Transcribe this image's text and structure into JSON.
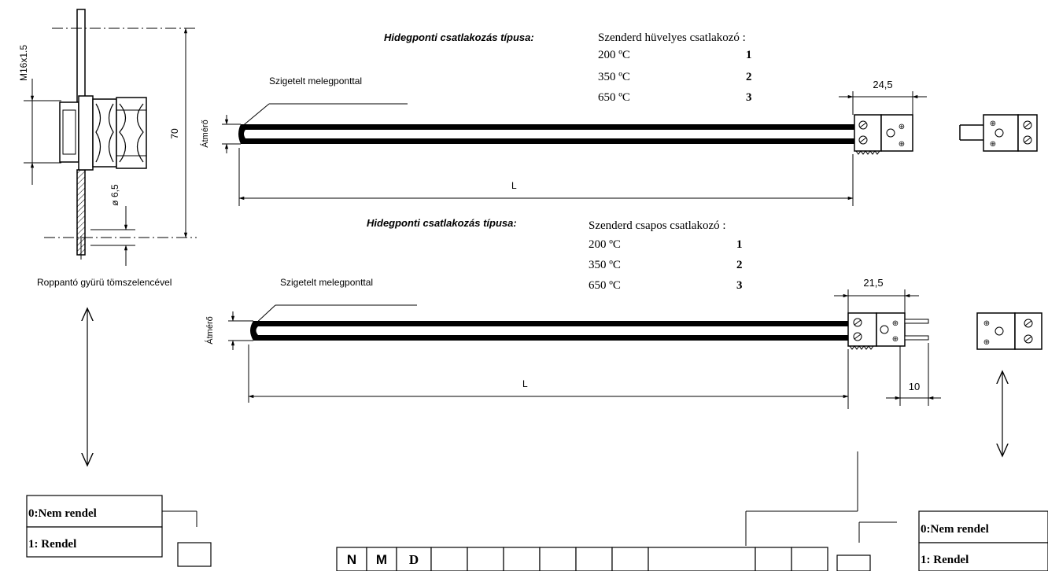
{
  "top": {
    "connection_title": "Hidegponti csatlakozás típusa:",
    "connector_heading": "Szenderd hüvelyes csatlakozó :",
    "options": [
      {
        "temp": "200 ºC",
        "code": "1"
      },
      {
        "temp": "350 ºC",
        "code": "2"
      },
      {
        "temp": "650 ºC",
        "code": "3"
      }
    ],
    "insulated_label": "Szigetelt melegponttal",
    "diameter_label": "Átmérő",
    "length_label": "L",
    "connector_width": "24,5"
  },
  "bottom": {
    "connection_title": "Hidegponti csatlakozás típusa:",
    "connector_heading": "Szenderd csapos csatlakozó :",
    "options": [
      {
        "temp": "200 ºC",
        "code": "1"
      },
      {
        "temp": "350 ºC",
        "code": "2"
      },
      {
        "temp": "650 ºC",
        "code": "3"
      }
    ],
    "insulated_label": "Szigetelt melegponttal",
    "diameter_label": "Átmérő",
    "length_label": "L",
    "connector_width": "21,5",
    "pin_length": "10"
  },
  "fitting": {
    "thread_label": "M16x1.5",
    "height_label": "70",
    "bore_label": "ø 6,5",
    "caption": "Roppantó gyürü  tömszelencével"
  },
  "left_order": {
    "not_ordered": "0:Nem rendel",
    "ordered": "1: Rendel"
  },
  "right_order": {
    "not_ordered": "0:Nem rendel",
    "ordered": "1: Rendel"
  },
  "order_code": {
    "cells": [
      "N",
      "M",
      "D",
      "",
      "",
      "",
      "",
      "",
      "",
      "",
      "",
      ""
    ]
  }
}
